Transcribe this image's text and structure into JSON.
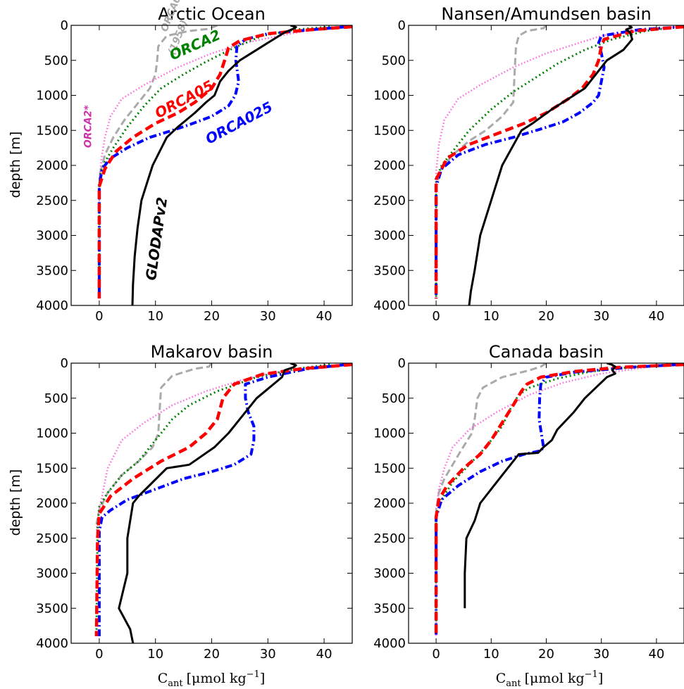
{
  "figure": {
    "ylabel": "depth [m]",
    "xlabel_main": "C",
    "xlabel_sub": "ant",
    "xlabel_unit": "[μmol kg",
    "xlabel_exp": "−1",
    "xlabel_close": "]"
  },
  "style": {
    "GLODAPv2": {
      "color": "#000000",
      "dash": "",
      "width": 3
    },
    "ORCA025": {
      "color": "#0000ff",
      "dash": "10,4,2,4",
      "width": 4
    },
    "ORCA05": {
      "color": "#ff0000",
      "dash": "12,6",
      "width": 4.5
    },
    "ORCA2": {
      "color": "#008000",
      "dash": "2,4",
      "width": 3
    },
    "ORCA2*": {
      "color": "#ff66dd",
      "dash": "1.5,3",
      "width": 2.5
    },
    "ORCA05 (1958)": {
      "color": "#aaaaaa",
      "dash": "10,5",
      "width": 3
    }
  },
  "chart_data": [
    {
      "type": "line",
      "title": "Arctic Ocean",
      "xlim": [
        -5,
        45
      ],
      "ylim": [
        4000,
        0
      ],
      "xticks": [
        0,
        10,
        20,
        30,
        40
      ],
      "yticks": [
        0,
        500,
        1000,
        1500,
        2000,
        2500,
        3000,
        3500,
        4000
      ],
      "ylabel": "depth [m]",
      "annotations": [
        {
          "text": "ORCA05",
          "x": 12,
          "y": 100,
          "rotate": -68,
          "color": "#aaaaaa",
          "size": 14
        },
        {
          "text": "(1958)",
          "x": 13.3,
          "y": 430,
          "rotate": -68,
          "color": "#aaaaaa",
          "size": 14
        },
        {
          "text": "ORCA2",
          "x": 13,
          "y": 500,
          "rotate": -24,
          "color": "#008000",
          "size": 20
        },
        {
          "text": "ORCA05",
          "x": 10.5,
          "y": 1330,
          "rotate": -28,
          "color": "#ff0000",
          "size": 20
        },
        {
          "text": "ORCA025",
          "x": 19.5,
          "y": 1700,
          "rotate": -28,
          "color": "#0000ff",
          "size": 20
        },
        {
          "text": "ORCA2*",
          "x": -1.4,
          "y": 1750,
          "rotate": -90,
          "color": "#cc33aa",
          "size": 14
        },
        {
          "text": "GLODAPv2",
          "x": 10,
          "y": 3650,
          "rotate": -82,
          "color": "#000000",
          "size": 20
        }
      ],
      "series": [
        {
          "name": "GLODAPv2",
          "x": [
            34,
            35,
            34.5,
            33,
            31,
            29,
            27,
            25,
            23,
            21.5,
            20.5,
            19,
            17,
            14,
            12,
            9.5,
            8.5,
            7.5,
            6.8,
            6.3,
            6.0,
            5.9
          ],
          "y": [
            0,
            25,
            50,
            100,
            200,
            300,
            400,
            500,
            650,
            800,
            1000,
            1100,
            1250,
            1450,
            1600,
            2000,
            2250,
            2500,
            2900,
            3300,
            3700,
            4000
          ]
        },
        {
          "name": "ORCA025",
          "x": [
            44,
            38,
            30,
            26,
            24.5,
            24.3,
            24.8,
            24.2,
            23,
            20,
            16,
            13,
            9,
            5,
            2,
            0.5,
            0,
            0
          ],
          "y": [
            20,
            60,
            120,
            200,
            300,
            500,
            800,
            1000,
            1150,
            1300,
            1420,
            1500,
            1600,
            1750,
            1900,
            2050,
            2300,
            3900
          ]
        },
        {
          "name": "ORCA05",
          "x": [
            45,
            38,
            30,
            25,
            23,
            22.5,
            21.5,
            20,
            17,
            14,
            10,
            6,
            3,
            1,
            0,
            0
          ],
          "y": [
            20,
            60,
            120,
            220,
            320,
            450,
            700,
            900,
            1100,
            1250,
            1400,
            1600,
            1800,
            2050,
            2300,
            3900
          ]
        },
        {
          "name": "ORCA2",
          "x": [
            41,
            35,
            29,
            24,
            19,
            15,
            11,
            8,
            5,
            2.5,
            1,
            0.2,
            0,
            0
          ],
          "y": [
            20,
            60,
            150,
            320,
            520,
            700,
            900,
            1150,
            1450,
            1750,
            1950,
            2100,
            2300,
            3900
          ]
        },
        {
          "name": "ORCA2*",
          "x": [
            43,
            38,
            32,
            26,
            20,
            14,
            8,
            4,
            2,
            1,
            0.4,
            0,
            0
          ],
          "y": [
            20,
            60,
            150,
            250,
            400,
            600,
            850,
            1050,
            1300,
            1600,
            1900,
            2200,
            3900
          ]
        },
        {
          "name": "ORCA05 (1958)",
          "x": [
            21,
            19.5,
            16,
            12,
            10.5,
            10.3,
            10,
            9,
            7,
            4.5,
            2.5,
            1,
            0.2,
            0
          ],
          "y": [
            0,
            50,
            80,
            150,
            300,
            500,
            700,
            900,
            1100,
            1350,
            1600,
            1850,
            2100,
            2300
          ]
        }
      ]
    },
    {
      "type": "line",
      "title": "Nansen/Amundsen basin",
      "xlim": [
        -5,
        45
      ],
      "ylim": [
        4000,
        0
      ],
      "xticks": [
        0,
        10,
        20,
        30,
        40
      ],
      "yticks": [
        0,
        500,
        1000,
        1500,
        2000,
        2500,
        3000,
        3500,
        4000
      ],
      "series": [
        {
          "name": "GLODAPv2",
          "x": [
            35,
            35.5,
            34.5,
            35.2,
            35.6,
            34,
            31,
            29,
            27,
            24,
            21,
            17.5,
            15.5,
            12,
            10,
            8,
            7,
            6.3,
            6
          ],
          "y": [
            0,
            30,
            60,
            100,
            200,
            350,
            500,
            700,
            900,
            1050,
            1200,
            1400,
            1500,
            2000,
            2500,
            3000,
            3500,
            3800,
            4000
          ]
        },
        {
          "name": "ORCA025",
          "x": [
            45,
            37,
            30,
            29.5,
            30,
            30.5,
            30,
            29.5,
            28.5,
            26,
            23,
            19,
            14,
            9,
            4,
            1,
            0,
            0
          ],
          "y": [
            20,
            60,
            150,
            250,
            400,
            600,
            800,
            1000,
            1100,
            1250,
            1380,
            1480,
            1600,
            1700,
            1850,
            2050,
            2300,
            3900
          ]
        },
        {
          "name": "ORCA05",
          "x": [
            45,
            36,
            30.5,
            30,
            29.5,
            28.5,
            26.5,
            24,
            20,
            16,
            11,
            6,
            2,
            0,
            0
          ],
          "y": [
            20,
            80,
            200,
            300,
            500,
            700,
            900,
            1050,
            1250,
            1400,
            1550,
            1700,
            1900,
            2200,
            3900
          ]
        },
        {
          "name": "ORCA2",
          "x": [
            44,
            38,
            32,
            27,
            22,
            18,
            14,
            10,
            6,
            3,
            1,
            0,
            0
          ],
          "y": [
            20,
            80,
            200,
            350,
            550,
            750,
            950,
            1200,
            1500,
            1800,
            2000,
            2200,
            3900
          ]
        },
        {
          "name": "ORCA2*",
          "x": [
            44,
            38,
            30,
            26,
            20,
            14,
            8,
            4,
            1.5,
            0.5,
            0,
            0
          ],
          "y": [
            20,
            60,
            150,
            250,
            400,
            600,
            850,
            1050,
            1350,
            1700,
            2100,
            3900
          ]
        },
        {
          "name": "ORCA05 (1958)",
          "x": [
            20,
            19.5,
            16.5,
            15,
            14.5,
            14.3,
            14,
            12,
            9,
            6,
            3,
            1,
            0
          ],
          "y": [
            0,
            40,
            80,
            150,
            300,
            600,
            1100,
            1300,
            1500,
            1650,
            1850,
            2050,
            2300
          ]
        }
      ]
    },
    {
      "type": "line",
      "title": "Makarov basin",
      "xlim": [
        -5,
        45
      ],
      "ylim": [
        4000,
        0
      ],
      "xticks": [
        0,
        10,
        20,
        30,
        40
      ],
      "yticks": [
        0,
        500,
        1000,
        1500,
        2000,
        2500,
        3000,
        3500,
        4000
      ],
      "ylabel": "depth [m]",
      "xlabel": "C_ant [μmol kg^-1]",
      "series": [
        {
          "name": "GLODAPv2",
          "x": [
            34,
            35,
            34.5,
            33,
            32.5,
            31,
            28,
            27,
            25,
            23,
            20.5,
            16,
            12,
            7,
            6,
            5,
            5,
            5,
            3.5,
            5.5,
            6
          ],
          "y": [
            0,
            30,
            60,
            100,
            200,
            300,
            500,
            600,
            800,
            1000,
            1200,
            1450,
            1500,
            1900,
            2000,
            2500,
            2750,
            3000,
            3500,
            3800,
            4000
          ]
        },
        {
          "name": "ORCA025",
          "x": [
            44,
            37,
            30,
            26,
            26,
            26.5,
            27.5,
            27.5,
            27,
            24,
            20,
            15,
            10,
            5,
            2,
            0.5,
            0,
            0
          ],
          "y": [
            20,
            80,
            200,
            300,
            500,
            700,
            900,
            1100,
            1300,
            1450,
            1550,
            1650,
            1800,
            1950,
            2100,
            2200,
            2400,
            3900
          ]
        },
        {
          "name": "ORCA05",
          "x": [
            45,
            36,
            29,
            24,
            23,
            22,
            21,
            19,
            16,
            11,
            6,
            2,
            0,
            -0.3,
            -0.5
          ],
          "y": [
            20,
            80,
            160,
            300,
            400,
            500,
            800,
            1000,
            1200,
            1400,
            1650,
            1900,
            2150,
            2500,
            3900
          ]
        },
        {
          "name": "ORCA2",
          "x": [
            41,
            35,
            28,
            21,
            16,
            13,
            11,
            9,
            7,
            4,
            1.5,
            0,
            -0.3,
            -0.5
          ],
          "y": [
            20,
            80,
            200,
            400,
            600,
            800,
            1000,
            1200,
            1400,
            1600,
            1850,
            2050,
            2300,
            3900
          ]
        },
        {
          "name": "ORCA2*",
          "x": [
            43,
            38,
            30,
            25,
            19,
            13,
            8,
            4,
            1.5,
            0,
            -0.5
          ],
          "y": [
            20,
            60,
            150,
            250,
            400,
            600,
            850,
            1100,
            1500,
            2100,
            2400
          ]
        },
        {
          "name": "ORCA05 (1958)",
          "x": [
            20,
            19.5,
            17,
            13,
            11,
            10.8,
            10.5,
            9.5,
            7,
            4,
            1.5,
            0,
            -0.5
          ],
          "y": [
            0,
            50,
            80,
            180,
            350,
            600,
            1000,
            1200,
            1400,
            1600,
            1850,
            2100,
            2300
          ]
        }
      ]
    },
    {
      "type": "line",
      "title": "Canada basin",
      "xlim": [
        -5,
        45
      ],
      "ylim": [
        4000,
        0
      ],
      "xticks": [
        0,
        10,
        20,
        30,
        40
      ],
      "yticks": [
        0,
        500,
        1000,
        1500,
        2000,
        2500,
        3000,
        3500,
        4000
      ],
      "xlabel": "C_ant [μmol kg^-1]",
      "series": [
        {
          "name": "GLODAPv2",
          "x": [
            31,
            32,
            32.5,
            32,
            32.5,
            31,
            29,
            27,
            25,
            22,
            21,
            19.5,
            18.5,
            15,
            14,
            11,
            8,
            7,
            5.5,
            5.2,
            5.2,
            5.2
          ],
          "y": [
            0,
            25,
            50,
            100,
            150,
            200,
            350,
            500,
            700,
            950,
            1100,
            1200,
            1280,
            1300,
            1400,
            1700,
            2000,
            2250,
            2500,
            3000,
            3250,
            3500
          ]
        },
        {
          "name": "ORCA025",
          "x": [
            44,
            35,
            25,
            20,
            19,
            18.8,
            18.7,
            19.5,
            19,
            16,
            12,
            8,
            4,
            1,
            0,
            0
          ],
          "y": [
            20,
            60,
            130,
            200,
            300,
            500,
            800,
            1200,
            1250,
            1300,
            1400,
            1550,
            1750,
            1950,
            2200,
            3900
          ]
        },
        {
          "name": "ORCA05",
          "x": [
            45,
            33,
            25,
            19,
            16.5,
            15.5,
            14,
            12,
            10,
            8,
            5,
            2,
            0.5,
            0,
            0
          ],
          "y": [
            20,
            60,
            120,
            200,
            300,
            400,
            600,
            850,
            1100,
            1300,
            1500,
            1750,
            1950,
            2200,
            3900
          ]
        },
        {
          "name": "ORCA2",
          "x": [
            42,
            35,
            28,
            22,
            17,
            15,
            13.5,
            12,
            9,
            6,
            3,
            1,
            0,
            0
          ],
          "y": [
            20,
            60,
            120,
            220,
            350,
            450,
            650,
            900,
            1200,
            1450,
            1700,
            1950,
            2150,
            3900
          ]
        },
        {
          "name": "ORCA2*",
          "x": [
            43,
            38,
            30,
            23,
            17,
            11,
            6,
            3,
            1.5,
            0.5,
            0,
            0
          ],
          "y": [
            20,
            60,
            150,
            280,
            450,
            700,
            950,
            1200,
            1500,
            1800,
            2100,
            3900
          ]
        },
        {
          "name": "ORCA05 (1958)",
          "x": [
            20,
            19,
            17,
            12,
            8.5,
            7.5,
            7,
            6.5,
            4.5,
            3,
            1.5,
            0.5,
            0
          ],
          "y": [
            0,
            50,
            100,
            200,
            350,
            500,
            800,
            1000,
            1250,
            1450,
            1650,
            1850,
            2100
          ]
        }
      ]
    }
  ]
}
